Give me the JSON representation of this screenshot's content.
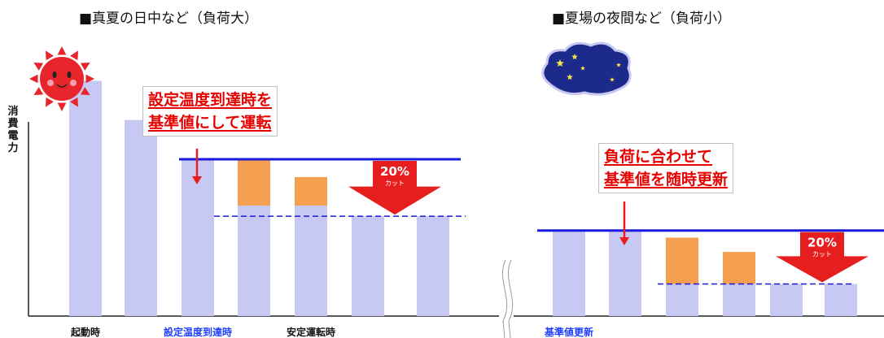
{
  "titles": {
    "left": "■真夏の日中など（負荷大）",
    "right": "■夏場の夜間など（負荷小）"
  },
  "ylabel_chars": [
    "消",
    "費",
    "電",
    "力"
  ],
  "callouts": {
    "left": [
      "設定温度到達時を",
      "基準値にして運転"
    ],
    "right": [
      "負荷に合わせて",
      "基準値を随時更新"
    ]
  },
  "arrow_text": {
    "percent": "20%",
    "sub": "カット"
  },
  "colors": {
    "bar": "#c8c8f5",
    "excess": "#f5a050",
    "baseline": "#1a1adc",
    "arrow": "#e61e1e",
    "callout_text": "#e60000",
    "label_blue": "#2040ff"
  },
  "icons": {
    "left": "sun-icon",
    "right": "moon-night-icon"
  },
  "chart_data": [
    {
      "type": "bar",
      "title": "■真夏の日中など（負荷大）",
      "ylabel": "消費電力",
      "x_labels": [
        {
          "text": "起動時",
          "bar_index": 0,
          "highlight": false
        },
        {
          "text": "設定温度到達時",
          "bar_index": 2,
          "highlight": true
        },
        {
          "text": "安定運転時",
          "bar_index": 4,
          "highlight": false
        }
      ],
      "series": [
        {
          "name": "",
          "values": [
            66,
            55,
            44,
            31,
            31,
            28,
            28
          ]
        },
        {
          "name": "",
          "values": [
            0,
            0,
            0,
            13,
            8,
            0,
            0
          ]
        }
      ],
      "reference_lines": {
        "baseline": 44,
        "target": 28
      },
      "reduction_label": "20%カット",
      "ylim": [
        0,
        75
      ]
    },
    {
      "type": "bar",
      "title": "■夏場の夜間など（負荷小）",
      "ylabel": "消費電力",
      "x_labels": [
        {
          "text": "基準値更新",
          "bar_index": 0,
          "highlight": true
        }
      ],
      "series": [
        {
          "name": "",
          "values": [
            24,
            24,
            9,
            9,
            9,
            9
          ]
        },
        {
          "name": "",
          "values": [
            0,
            0,
            13,
            9,
            0,
            0
          ]
        }
      ],
      "reference_lines": {
        "baseline": 24,
        "target": 9
      },
      "reduction_label": "20%カット",
      "ylim": [
        0,
        75
      ]
    }
  ]
}
